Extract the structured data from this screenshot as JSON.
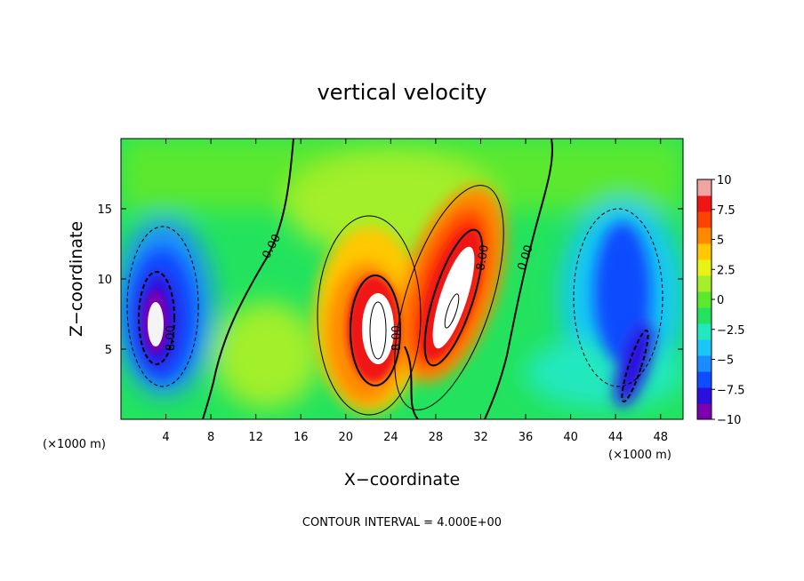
{
  "chart_data": {
    "type": "heatmap",
    "title": "vertical velocity",
    "xlabel": "X−coordinate",
    "ylabel": "Z−coordinate",
    "x_unit_left": "(×1000 m)",
    "x_unit_right": "(×1000 m)",
    "x_ticks": [
      4,
      8,
      12,
      16,
      20,
      24,
      28,
      32,
      36,
      40,
      44,
      48
    ],
    "y_ticks": [
      5,
      10,
      15
    ],
    "xlim": [
      0,
      50
    ],
    "ylim": [
      0,
      20
    ],
    "colorbar": {
      "ticks": [
        "10",
        "7.5",
        "5",
        "2.5",
        "0",
        "−2.5",
        "−5",
        "−7.5",
        "−10"
      ],
      "range": [
        -10,
        10
      ],
      "colors": [
        "#7a00b0",
        "#2b0fe0",
        "#0f4cff",
        "#1a8cff",
        "#19c6f7",
        "#21e8c0",
        "#23e35e",
        "#5be82d",
        "#a2ef2a",
        "#e8f215",
        "#ffc800",
        "#ff8a00",
        "#ff4200",
        "#f01515",
        "#f0a3a3"
      ]
    },
    "contour_interval": "CONTOUR INTERVAL = 4.000E+00",
    "contour_labels": [
      "0.00",
      "0.00",
      "8.00",
      "8.00",
      "8.00"
    ],
    "features": [
      {
        "name": "downdraft",
        "x": 3.5,
        "z": 8,
        "w": -10
      },
      {
        "name": "updraft",
        "x": 22.5,
        "z": 6.5,
        "w": 10
      },
      {
        "name": "updraft",
        "x": 29.5,
        "z": 9,
        "w": 10
      },
      {
        "name": "downdraft",
        "x": 44,
        "z": 10,
        "w": -6
      },
      {
        "name": "downdraft",
        "x": 45.5,
        "z": 3,
        "w": -8
      }
    ]
  }
}
